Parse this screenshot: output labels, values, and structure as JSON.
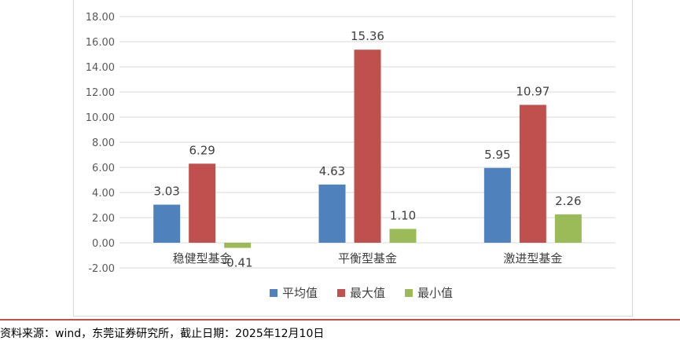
{
  "chart_data": {
    "type": "bar",
    "categories": [
      "稳健型基金",
      "平衡型基金",
      "激进型基金"
    ],
    "series": [
      {
        "name": "平均值",
        "values": [
          3.03,
          4.63,
          5.95
        ],
        "color": "#4f81bd"
      },
      {
        "name": "最大值",
        "values": [
          6.29,
          15.36,
          10.97
        ],
        "color": "#c0504d"
      },
      {
        "name": "最小值",
        "values": [
          -0.41,
          1.1,
          2.26
        ],
        "color": "#9bbb59"
      }
    ],
    "ylim": [
      -2,
      18
    ],
    "yticks": [
      "-2.00",
      "0.00",
      "2.00",
      "4.00",
      "6.00",
      "8.00",
      "10.00",
      "12.00",
      "14.00",
      "16.00",
      "18.00"
    ],
    "grid": true,
    "legend_position": "bottom"
  },
  "source_note": "资料来源：wind，东莞证券研究所，截止日期：2025年12月10日",
  "colors": {
    "divider": "#c0504d",
    "grid": "#d9d9d9"
  }
}
